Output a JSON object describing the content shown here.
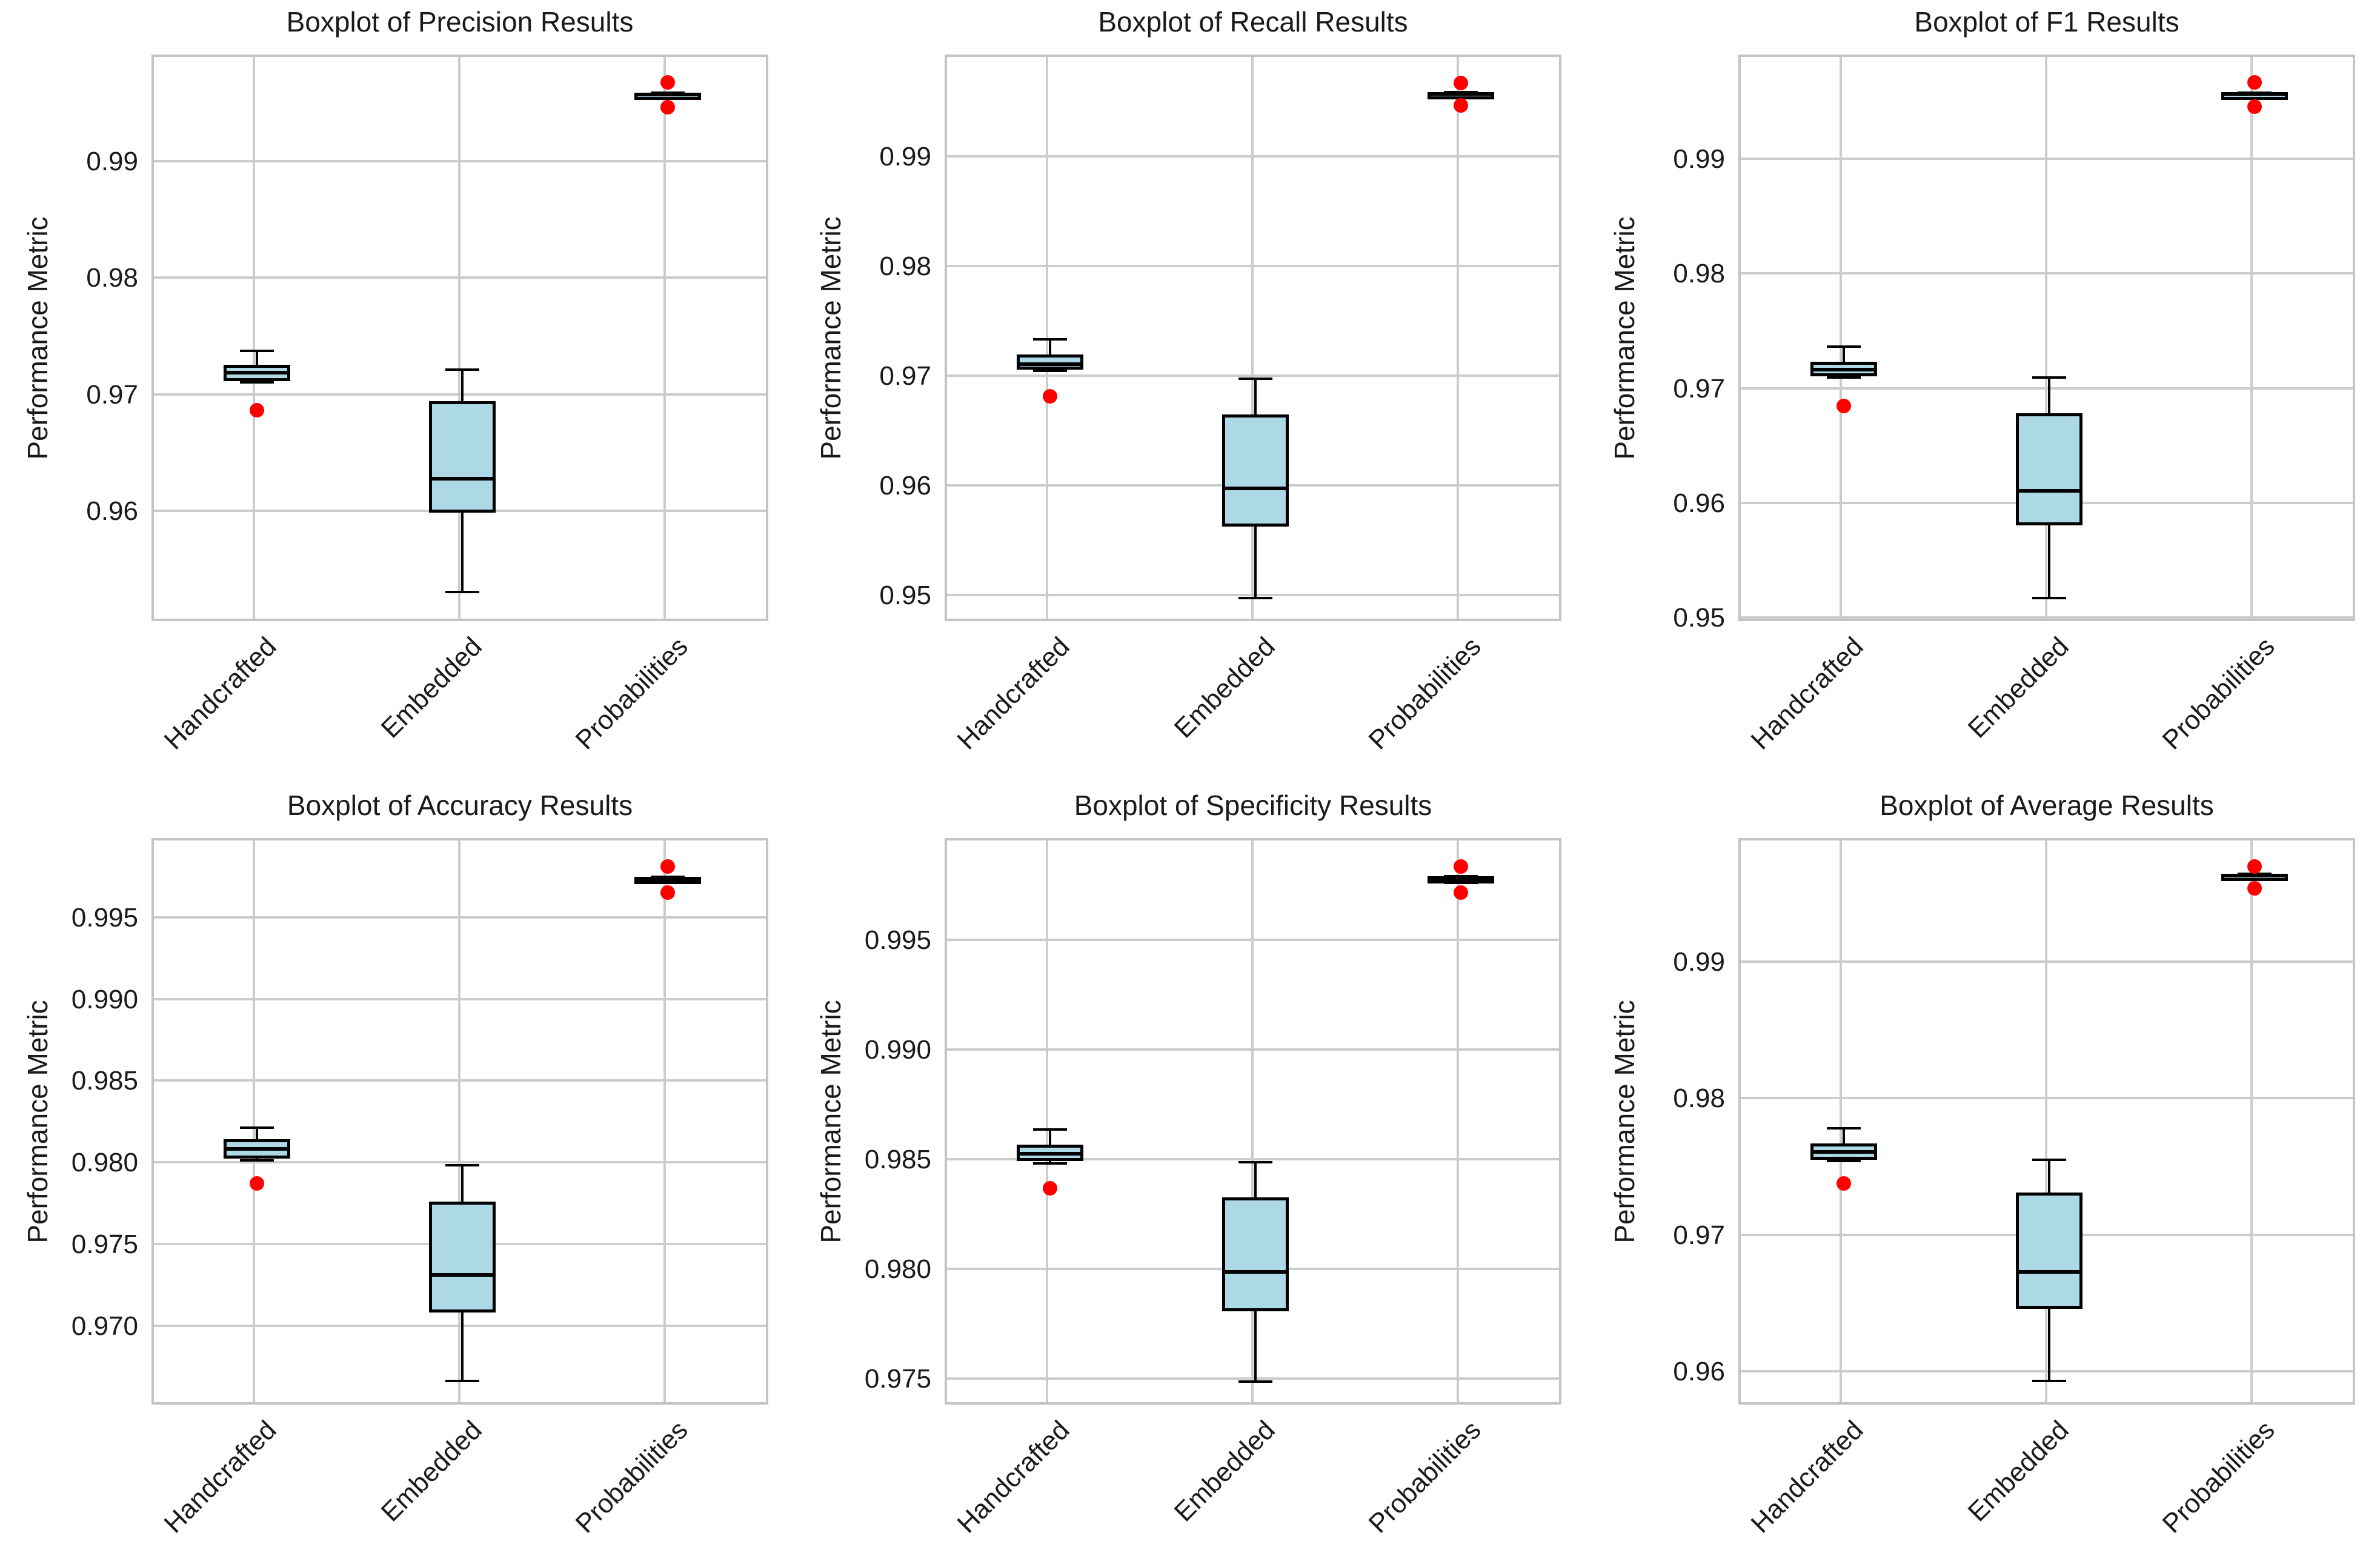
{
  "style": {
    "box_fill": "#ADD8E6",
    "box_edge": "#000000",
    "median_color": "#000000",
    "whisker_color": "#000000",
    "outlier_color": "#FF0000",
    "grid_color": "#CCCCCC",
    "spine_color": "#C4C4C4",
    "text_color": "#1A1A1A",
    "background": "#FFFFFF"
  },
  "chart_data": [
    {
      "type": "boxplot",
      "title": "Boxplot of Precision Results",
      "ylabel": "Performance Metric",
      "categories": [
        "Handcrafted",
        "Embedded",
        "Probabilities"
      ],
      "grid": true,
      "legend": false,
      "ylim": [
        0.9506,
        0.9992
      ],
      "yticks": [
        0.96,
        0.97,
        0.98,
        0.99
      ],
      "ytick_labels": [
        "0.96",
        "0.97",
        "0.98",
        "0.99"
      ],
      "boxes": [
        {
          "category": "Handcrafted",
          "whisker_low": 0.9713,
          "q1": 0.9714,
          "median": 0.9721,
          "q3": 0.9728,
          "whisker_high": 0.974,
          "outliers": [
            0.9689
          ]
        },
        {
          "category": "Embedded",
          "whisker_low": 0.9533,
          "q1": 0.9601,
          "median": 0.963,
          "q3": 0.9697,
          "whisker_high": 0.9724,
          "outliers": []
        },
        {
          "category": "Probabilities",
          "whisker_low": 0.99585,
          "q1": 0.99585,
          "median": 0.996,
          "q3": 0.99615,
          "whisker_high": 0.99615,
          "outliers": [
            0.997,
            0.9949
          ]
        }
      ]
    },
    {
      "type": "boxplot",
      "title": "Boxplot of Recall Results",
      "ylabel": "Performance Metric",
      "categories": [
        "Handcrafted",
        "Embedded",
        "Probabilities"
      ],
      "grid": true,
      "legend": false,
      "ylim": [
        0.94765,
        0.99935
      ],
      "yticks": [
        0.95,
        0.96,
        0.97,
        0.98,
        0.99
      ],
      "ytick_labels": [
        "0.95",
        "0.96",
        "0.97",
        "0.98",
        "0.99"
      ],
      "boxes": [
        {
          "category": "Handcrafted",
          "whisker_low": 0.9707,
          "q1": 0.9708,
          "median": 0.9713,
          "q3": 0.9722,
          "whisker_high": 0.9736,
          "outliers": [
            0.9684
          ]
        },
        {
          "category": "Embedded",
          "whisker_low": 0.95,
          "q1": 0.9565,
          "median": 0.96,
          "q3": 0.9667,
          "whisker_high": 0.97,
          "outliers": []
        },
        {
          "category": "Probabilities",
          "whisker_low": 0.99585,
          "q1": 0.99585,
          "median": 0.996,
          "q3": 0.99615,
          "whisker_high": 0.99615,
          "outliers": [
            0.997,
            0.9949
          ]
        }
      ]
    },
    {
      "type": "boxplot",
      "title": "Boxplot of F1 Results",
      "ylabel": "Performance Metric",
      "categories": [
        "Handcrafted",
        "Embedded",
        "Probabilities"
      ],
      "grid": true,
      "legend": false,
      "ylim": [
        0.94976,
        0.99914
      ],
      "yticks": [
        0.95,
        0.96,
        0.97,
        0.98,
        0.99
      ],
      "ytick_labels": [
        "0.95",
        "0.96",
        "0.97",
        "0.98",
        "0.99"
      ],
      "boxes": [
        {
          "category": "Handcrafted",
          "whisker_low": 0.9712,
          "q1": 0.9713,
          "median": 0.9719,
          "q3": 0.9726,
          "whisker_high": 0.9739,
          "outliers": [
            0.9687
          ]
        },
        {
          "category": "Embedded",
          "whisker_low": 0.952,
          "q1": 0.9583,
          "median": 0.9613,
          "q3": 0.9681,
          "whisker_high": 0.9712,
          "outliers": []
        },
        {
          "category": "Probabilities",
          "whisker_low": 0.99575,
          "q1": 0.99575,
          "median": 0.9959,
          "q3": 0.99605,
          "whisker_high": 0.99605,
          "outliers": [
            0.9969,
            0.9948
          ]
        }
      ]
    },
    {
      "type": "boxplot",
      "title": "Boxplot of Accuracy Results",
      "ylabel": "Performance Metric",
      "categories": [
        "Handcrafted",
        "Embedded",
        "Probabilities"
      ],
      "grid": true,
      "legend": false,
      "ylim": [
        0.96522,
        0.99988
      ],
      "yticks": [
        0.97,
        0.975,
        0.98,
        0.985,
        0.99,
        0.995
      ],
      "ytick_labels": [
        "0.970",
        "0.975",
        "0.980",
        "0.985",
        "0.990",
        "0.995"
      ],
      "boxes": [
        {
          "category": "Handcrafted",
          "whisker_low": 0.9803,
          "q1": 0.9804,
          "median": 0.981,
          "q3": 0.9816,
          "whisker_high": 0.9823,
          "outliers": [
            0.9789
          ]
        },
        {
          "category": "Embedded",
          "whisker_low": 0.9668,
          "q1": 0.971,
          "median": 0.9733,
          "q3": 0.9778,
          "whisker_high": 0.98,
          "outliers": []
        },
        {
          "category": "Probabilities",
          "whisker_low": 0.99735,
          "q1": 0.99735,
          "median": 0.9975,
          "q3": 0.99765,
          "whisker_high": 0.99765,
          "outliers": [
            0.9983,
            0.9967
          ]
        }
      ]
    },
    {
      "type": "boxplot",
      "title": "Boxplot of Specificity Results",
      "ylabel": "Performance Metric",
      "categories": [
        "Handcrafted",
        "Embedded",
        "Probabilities"
      ],
      "grid": true,
      "legend": false,
      "ylim": [
        0.97383,
        0.99968
      ],
      "yticks": [
        0.975,
        0.98,
        0.985,
        0.99,
        0.995
      ],
      "ytick_labels": [
        "0.975",
        "0.980",
        "0.985",
        "0.990",
        "0.995"
      ],
      "boxes": [
        {
          "category": "Handcrafted",
          "whisker_low": 0.98495,
          "q1": 0.98505,
          "median": 0.9854,
          "q3": 0.9858,
          "whisker_high": 0.9865,
          "outliers": [
            0.9838
          ]
        },
        {
          "category": "Embedded",
          "whisker_low": 0.975,
          "q1": 0.9782,
          "median": 0.98,
          "q3": 0.9834,
          "whisker_high": 0.985,
          "outliers": []
        },
        {
          "category": "Probabilities",
          "whisker_low": 0.99775,
          "q1": 0.99775,
          "median": 0.9979,
          "q3": 0.99805,
          "whisker_high": 0.99805,
          "outliers": [
            0.9985,
            0.9973
          ]
        }
      ]
    },
    {
      "type": "boxplot",
      "title": "Boxplot of Average Results",
      "ylabel": "Performance Metric",
      "categories": [
        "Handcrafted",
        "Embedded",
        "Probabilities"
      ],
      "grid": true,
      "legend": false,
      "ylim": [
        0.95761,
        0.99909
      ],
      "yticks": [
        0.96,
        0.97,
        0.98,
        0.99
      ],
      "ytick_labels": [
        "0.96",
        "0.97",
        "0.98",
        "0.99"
      ],
      "boxes": [
        {
          "category": "Handcrafted",
          "whisker_low": 0.9756,
          "q1": 0.9757,
          "median": 0.9763,
          "q3": 0.9769,
          "whisker_high": 0.978,
          "outliers": [
            0.974
          ]
        },
        {
          "category": "Embedded",
          "whisker_low": 0.9595,
          "q1": 0.9648,
          "median": 0.9675,
          "q3": 0.9733,
          "whisker_high": 0.9757,
          "outliers": []
        },
        {
          "category": "Probabilities",
          "whisker_low": 0.99635,
          "q1": 0.99635,
          "median": 0.9965,
          "q3": 0.99665,
          "whisker_high": 0.99665,
          "outliers": [
            0.9972,
            0.9956
          ]
        }
      ]
    }
  ]
}
